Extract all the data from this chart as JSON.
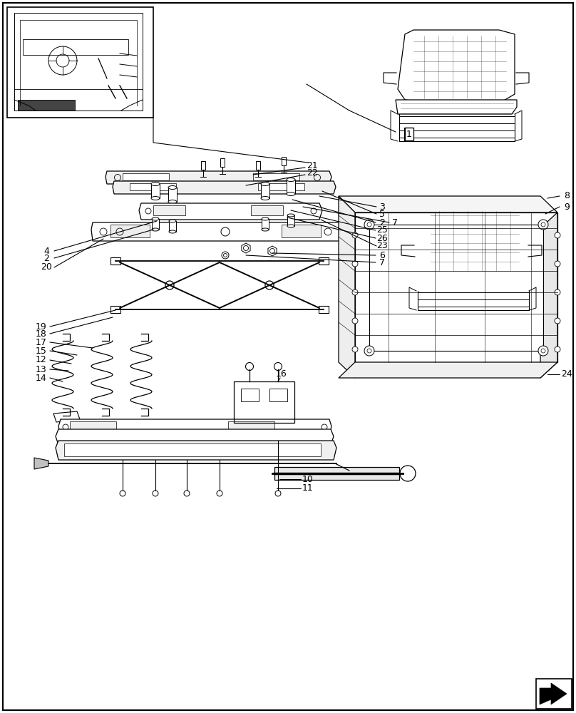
{
  "bg_color": "#ffffff",
  "line_color": "#000000",
  "text_color": "#000000",
  "font_size_labels": 9
}
